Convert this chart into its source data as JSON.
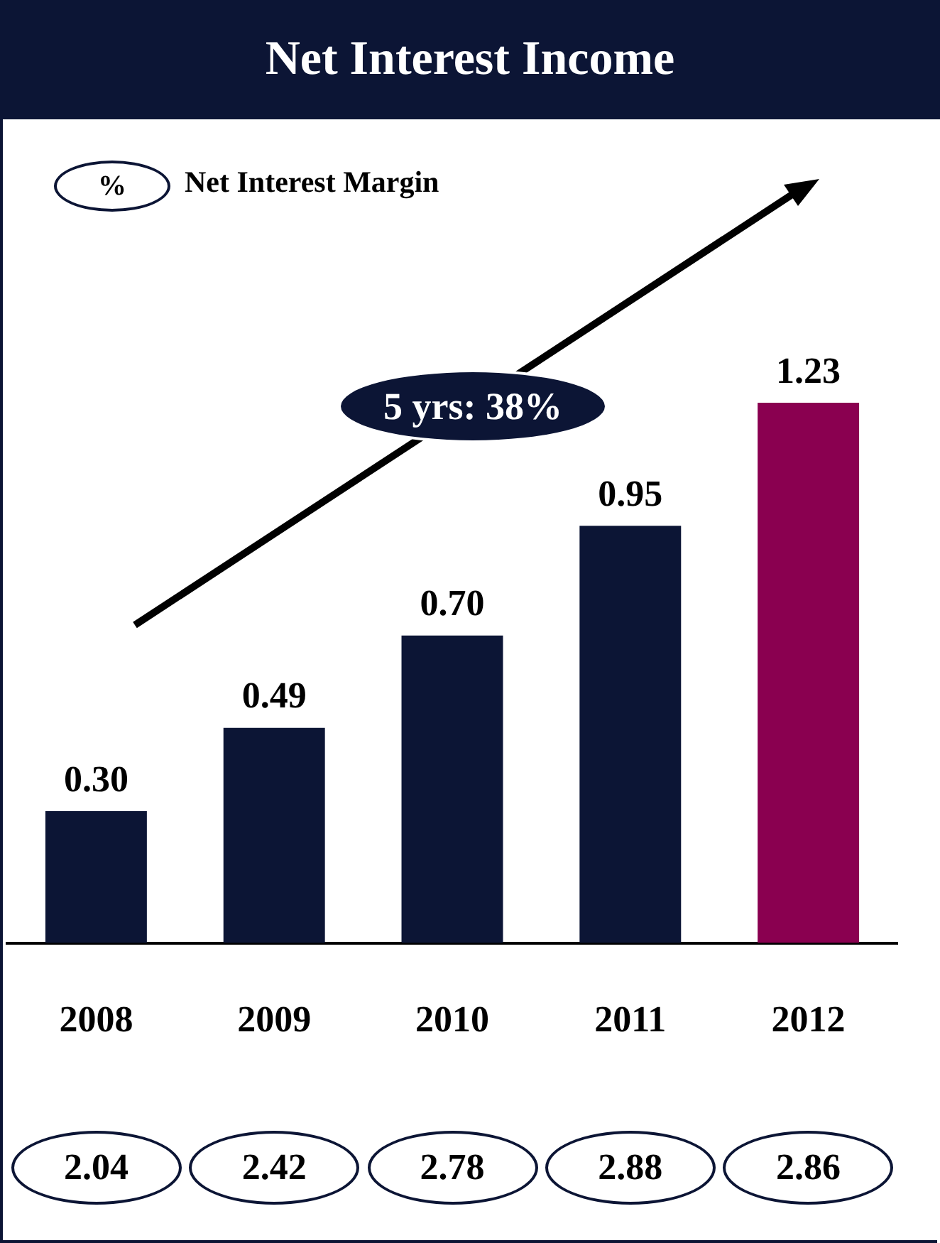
{
  "chart_data": {
    "type": "bar",
    "title": "Net Interest Income",
    "categories": [
      "2008",
      "2009",
      "2010",
      "2011",
      "2012"
    ],
    "values": [
      0.3,
      0.49,
      0.7,
      0.95,
      1.23
    ],
    "colors": [
      "#0c1535",
      "#0c1535",
      "#0c1535",
      "#0c1535",
      "#8a0050"
    ],
    "value_labels": [
      "0.30",
      "0.49",
      "0.70",
      "0.95",
      "1.23"
    ],
    "tick_labels": "x",
    "grid": false,
    "legend": false,
    "annotations": [
      "%",
      "Net Interest Margin",
      "5 yrs: 38%",
      "2.04",
      "2.42",
      "2.78",
      "2.88",
      "2.86"
    ]
  }
}
